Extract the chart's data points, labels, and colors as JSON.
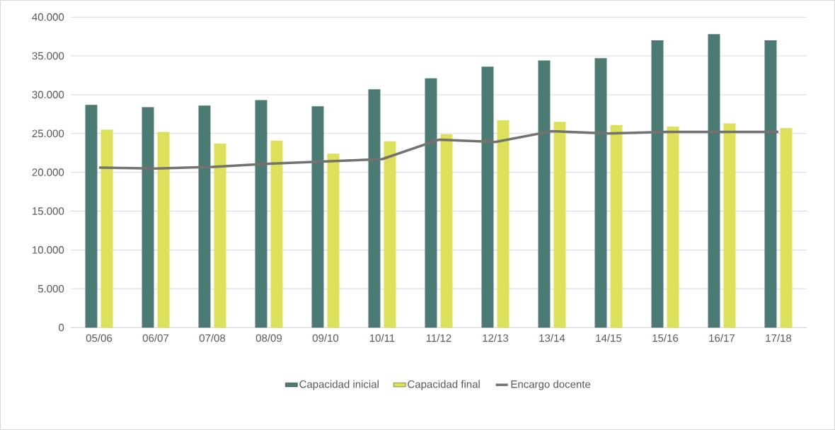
{
  "chart_data": {
    "type": "bar",
    "categories": [
      "05/06",
      "06/07",
      "07/08",
      "08/09",
      "09/10",
      "10/11",
      "11/12",
      "12/13",
      "13/14",
      "14/15",
      "15/16",
      "16/17",
      "17/18"
    ],
    "series": [
      {
        "name": "Capacidad inicial",
        "color": "#4e7a74",
        "values": [
          28700,
          28400,
          28600,
          29300,
          28500,
          30700,
          32100,
          33600,
          34400,
          34700,
          37000,
          37800,
          37000
        ]
      },
      {
        "name": "Capacidad final",
        "color": "#dde05a",
        "values": [
          25500,
          25200,
          23700,
          24100,
          22400,
          24000,
          24900,
          26700,
          26500,
          26100,
          25900,
          26300,
          25700
        ]
      },
      {
        "name": "Encargo docente",
        "type": "line",
        "color": "#767171",
        "values": [
          20600,
          20500,
          20700,
          21100,
          21400,
          21700,
          24200,
          23900,
          25300,
          25000,
          25200,
          25200,
          25200
        ]
      }
    ],
    "ylim": [
      0,
      40000
    ],
    "yticks": [
      {
        "value": 0,
        "label": "0"
      },
      {
        "value": 5000,
        "label": "5.000"
      },
      {
        "value": 10000,
        "label": "10.000"
      },
      {
        "value": 15000,
        "label": "15.000"
      },
      {
        "value": 20000,
        "label": "20.000"
      },
      {
        "value": 25000,
        "label": "25.000"
      },
      {
        "value": 30000,
        "label": "30.000"
      },
      {
        "value": 35000,
        "label": "35.000"
      },
      {
        "value": 40000,
        "label": "40.000"
      }
    ],
    "grid": "y",
    "legend": "bottom",
    "marker": "none",
    "line_style": "solid"
  }
}
